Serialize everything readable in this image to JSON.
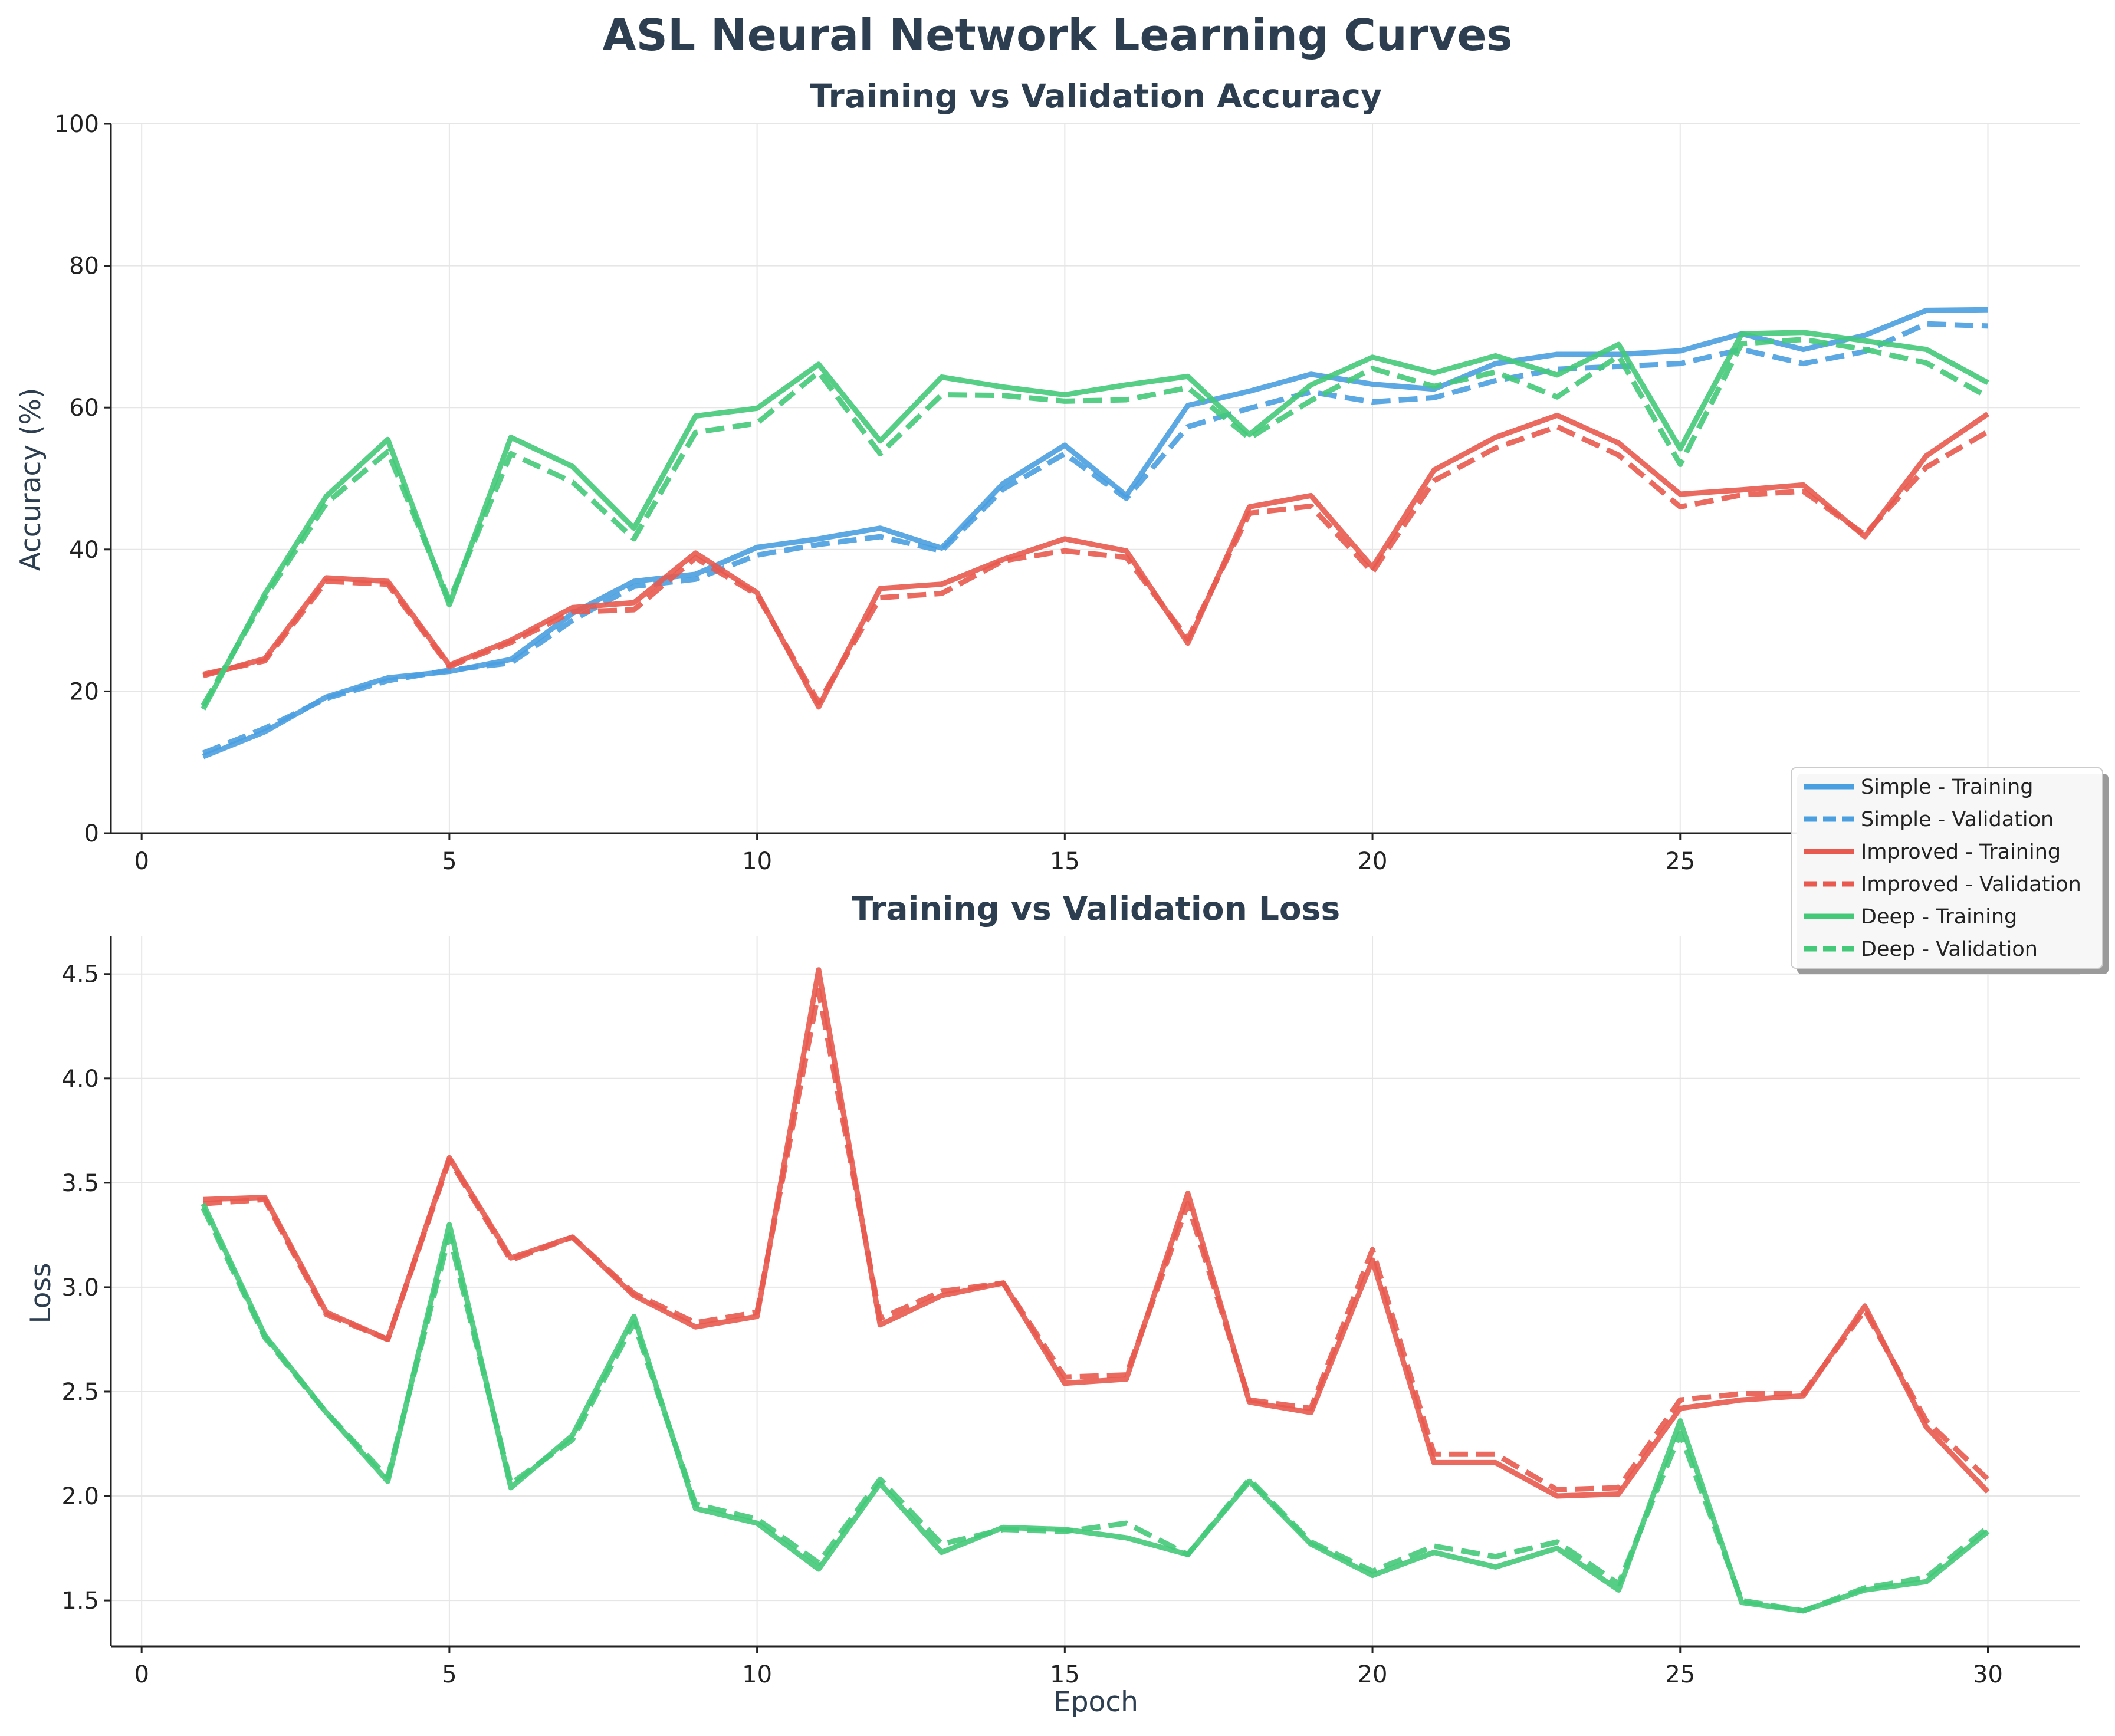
{
  "figure": {
    "title": "ASL Neural Network Learning Curves"
  },
  "chart_data": [
    {
      "type": "line",
      "title": "Training vs Validation Accuracy",
      "xlabel": "",
      "ylabel": "Accuracy (%)",
      "xlim": [
        -0.5,
        31.5
      ],
      "ylim": [
        0,
        100
      ],
      "xticks": [
        0,
        5,
        10,
        15,
        20,
        25,
        30
      ],
      "yticks": [
        0,
        20,
        40,
        60,
        80,
        100
      ],
      "grid": true,
      "x": [
        1,
        2,
        3,
        4,
        5,
        6,
        7,
        8,
        9,
        10,
        11,
        12,
        13,
        14,
        15,
        16,
        17,
        18,
        19,
        20,
        21,
        22,
        23,
        24,
        25,
        26,
        27,
        28,
        29,
        30
      ],
      "series": [
        {
          "name": "Simple - Training",
          "color": "#4a9fe0",
          "style": "solid",
          "values": [
            10.8,
            14.3,
            19.2,
            21.9,
            22.8,
            24.5,
            31.0,
            35.5,
            36.5,
            40.3,
            41.5,
            43.0,
            40.2,
            49.3,
            54.7,
            47.6,
            60.3,
            62.3,
            64.7,
            63.3,
            62.6,
            66.2,
            67.5,
            67.5,
            68.0,
            70.4,
            68.2,
            70.2,
            73.7,
            73.8
          ]
        },
        {
          "name": "Simple - Validation",
          "color": "#4a9fe0",
          "style": "dashed",
          "values": [
            11.3,
            14.8,
            19.0,
            21.5,
            23.0,
            24.0,
            30.0,
            34.8,
            35.8,
            39.2,
            40.7,
            41.8,
            39.8,
            48.5,
            53.5,
            47.2,
            57.3,
            59.9,
            62.2,
            60.8,
            61.4,
            63.8,
            65.4,
            65.8,
            66.2,
            68.2,
            66.2,
            67.9,
            71.8,
            71.5
          ]
        },
        {
          "name": "Improved - Training",
          "color": "#e85a4f",
          "style": "solid",
          "values": [
            22.2,
            24.6,
            36.0,
            35.5,
            23.7,
            27.2,
            31.8,
            32.5,
            39.5,
            33.9,
            17.8,
            34.5,
            35.1,
            38.6,
            41.5,
            39.8,
            26.8,
            46.0,
            47.6,
            37.5,
            51.2,
            55.8,
            58.9,
            55.0,
            47.8,
            48.4,
            49.1,
            41.8,
            53.2,
            59.1
          ]
        },
        {
          "name": "Improved - Validation",
          "color": "#e85a4f",
          "style": "dashed",
          "values": [
            22.4,
            24.3,
            35.5,
            35.1,
            23.5,
            26.9,
            31.2,
            31.5,
            38.8,
            33.6,
            18.4,
            33.2,
            33.8,
            38.4,
            39.8,
            38.9,
            27.4,
            45.1,
            46.1,
            36.8,
            49.7,
            54.3,
            57.3,
            53.3,
            46.0,
            47.7,
            48.2,
            42.1,
            51.6,
            56.6
          ]
        },
        {
          "name": "Deep - Training",
          "color": "#44c979",
          "style": "solid",
          "values": [
            17.5,
            33.7,
            47.5,
            55.5,
            32.2,
            55.8,
            51.7,
            43.0,
            58.8,
            59.9,
            66.1,
            55.3,
            64.3,
            62.9,
            61.8,
            63.2,
            64.4,
            56.2,
            63.2,
            67.1,
            64.9,
            67.3,
            64.6,
            68.9,
            54.2,
            70.4,
            70.6,
            69.4,
            68.2,
            63.5
          ]
        },
        {
          "name": "Deep - Validation",
          "color": "#44c979",
          "style": "dashed",
          "values": [
            18.0,
            33.2,
            46.5,
            53.8,
            32.8,
            53.5,
            49.5,
            41.5,
            56.5,
            57.8,
            65.0,
            53.5,
            61.8,
            61.7,
            60.9,
            61.1,
            62.8,
            55.7,
            61.0,
            65.5,
            63.0,
            65.0,
            61.5,
            67.3,
            52.0,
            69.0,
            69.6,
            68.2,
            66.3,
            61.5
          ]
        }
      ]
    },
    {
      "type": "line",
      "title": "Training vs Validation Loss",
      "xlabel": "Epoch",
      "ylabel": "Loss",
      "xlim": [
        -0.5,
        31.5
      ],
      "ylim": [
        1.28,
        4.68
      ],
      "xticks": [
        0,
        5,
        10,
        15,
        20,
        25,
        30
      ],
      "yticks": [
        1.5,
        2.0,
        2.5,
        3.0,
        3.5,
        4.0,
        4.5
      ],
      "ytick_labels": [
        "1.5",
        "2.0",
        "2.5",
        "3.0",
        "3.5",
        "4.0",
        "4.5"
      ],
      "grid": true,
      "x": [
        1,
        2,
        3,
        4,
        5,
        6,
        7,
        8,
        9,
        10,
        11,
        12,
        13,
        14,
        15,
        16,
        17,
        18,
        19,
        20,
        21,
        22,
        23,
        24,
        25,
        26,
        27,
        28,
        29,
        30
      ],
      "series": [
        {
          "name": "Improved - Training",
          "color": "#e85a4f",
          "style": "solid",
          "values": [
            3.42,
            3.43,
            2.88,
            2.75,
            3.62,
            3.14,
            3.24,
            2.96,
            2.81,
            2.86,
            4.52,
            2.82,
            2.96,
            3.02,
            2.54,
            2.56,
            3.45,
            2.45,
            2.4,
            3.13,
            2.16,
            2.16,
            2.0,
            2.01,
            2.42,
            2.46,
            2.48,
            2.91,
            2.33,
            2.02
          ]
        },
        {
          "name": "Improved - Validation",
          "color": "#e85a4f",
          "style": "dashed",
          "values": [
            3.4,
            3.42,
            2.87,
            2.75,
            3.61,
            3.13,
            3.24,
            2.97,
            2.83,
            2.88,
            4.42,
            2.85,
            2.98,
            3.02,
            2.57,
            2.58,
            3.4,
            2.46,
            2.42,
            3.18,
            2.2,
            2.2,
            2.03,
            2.04,
            2.46,
            2.49,
            2.49,
            2.89,
            2.36,
            2.08
          ]
        },
        {
          "name": "Deep - Training",
          "color": "#44c979",
          "style": "solid",
          "values": [
            3.4,
            2.77,
            2.4,
            2.07,
            3.3,
            2.04,
            2.29,
            2.86,
            1.94,
            1.87,
            1.65,
            2.06,
            1.73,
            1.85,
            1.84,
            1.8,
            1.72,
            2.07,
            1.77,
            1.62,
            1.73,
            1.66,
            1.75,
            1.55,
            2.36,
            1.49,
            1.45,
            1.55,
            1.59,
            1.83
          ]
        },
        {
          "name": "Deep - Validation",
          "color": "#44c979",
          "style": "dashed",
          "values": [
            3.38,
            2.76,
            2.4,
            2.09,
            3.25,
            2.06,
            2.27,
            2.83,
            1.96,
            1.89,
            1.68,
            2.08,
            1.77,
            1.84,
            1.83,
            1.87,
            1.72,
            2.08,
            1.78,
            1.64,
            1.76,
            1.71,
            1.78,
            1.58,
            2.3,
            1.5,
            1.45,
            1.56,
            1.61,
            1.85
          ]
        }
      ]
    }
  ],
  "legend": {
    "placement": "right, between panels",
    "entries": [
      {
        "label": "Simple - Training",
        "color": "#4a9fe0",
        "style": "solid"
      },
      {
        "label": "Simple - Validation",
        "color": "#4a9fe0",
        "style": "dashed"
      },
      {
        "label": "Improved - Training",
        "color": "#e85a4f",
        "style": "solid"
      },
      {
        "label": "Improved - Validation",
        "color": "#e85a4f",
        "style": "dashed"
      },
      {
        "label": "Deep - Training",
        "color": "#44c979",
        "style": "solid"
      },
      {
        "label": "Deep - Validation",
        "color": "#44c979",
        "style": "dashed"
      }
    ]
  }
}
